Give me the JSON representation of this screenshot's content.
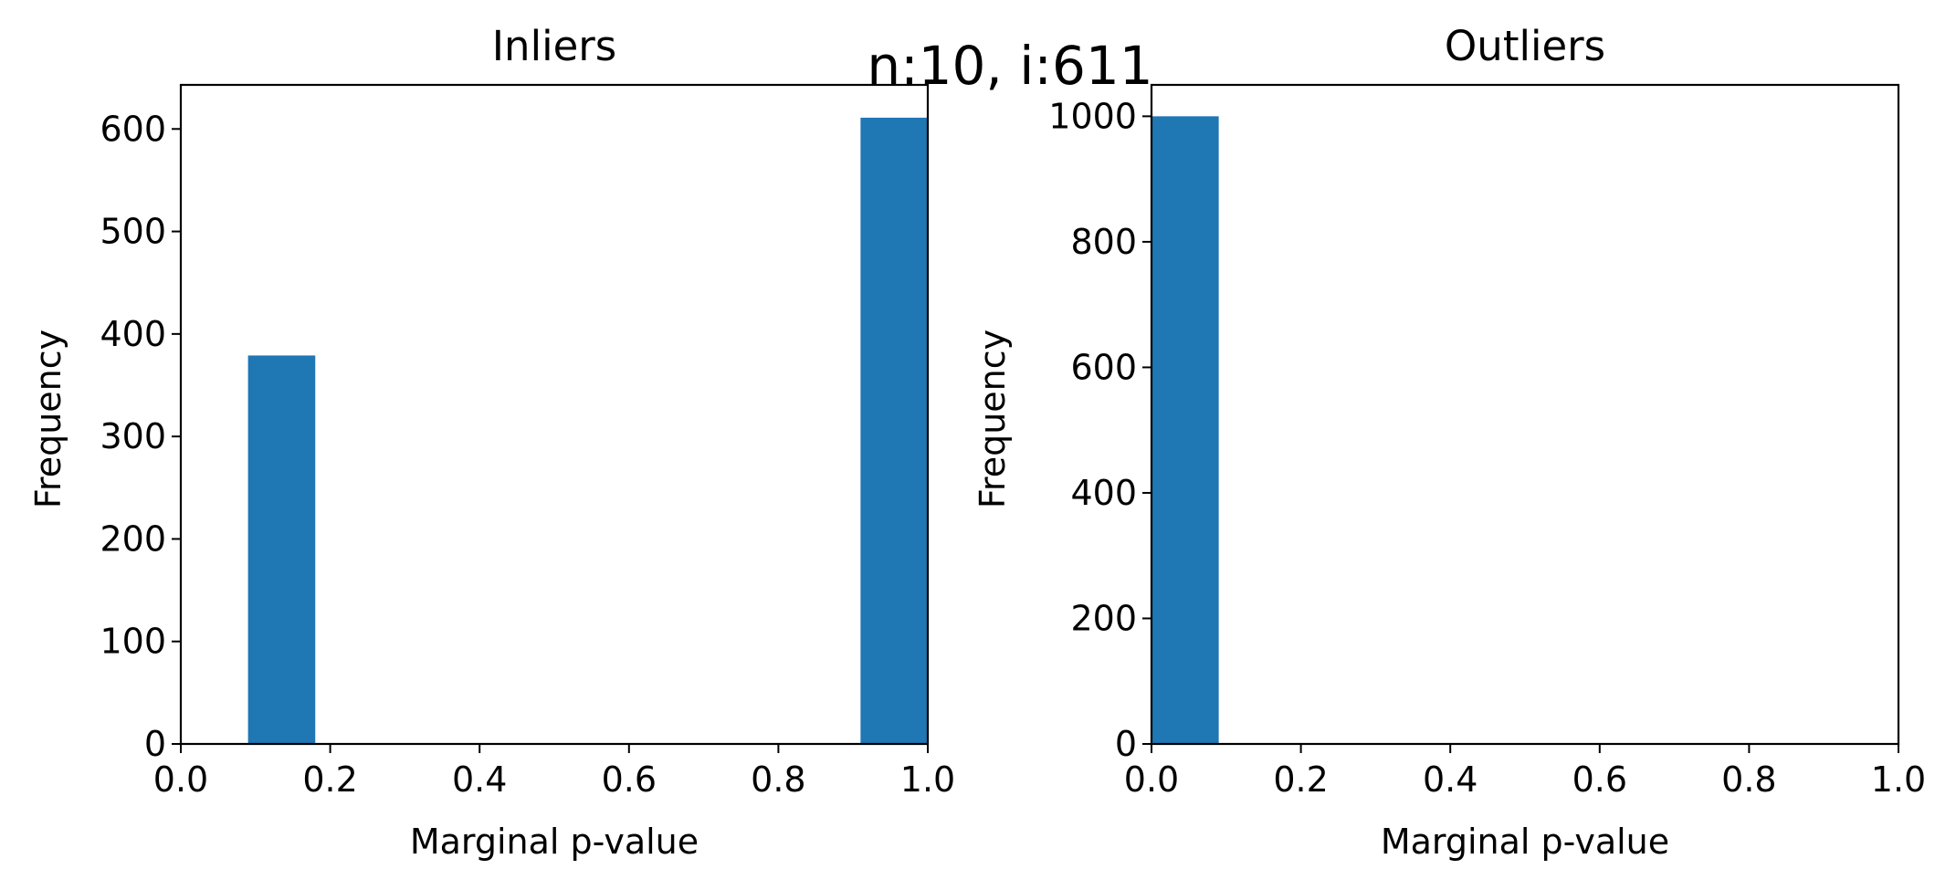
{
  "suptitle": "n:10, i:611",
  "chart_data": [
    {
      "type": "bar",
      "title": "Inliers",
      "xlabel": "Marginal p-value",
      "ylabel": "Frequency",
      "xlim": [
        0.0,
        1.0
      ],
      "ylim": [
        0,
        643
      ],
      "x_ticks": [
        "0.0",
        "0.2",
        "0.4",
        "0.6",
        "0.8",
        "1.0"
      ],
      "y_ticks": [
        "0",
        "100",
        "200",
        "300",
        "400",
        "500",
        "600"
      ],
      "bars": [
        {
          "x0": 0.09,
          "x1": 0.18,
          "value": 379
        },
        {
          "x0": 0.91,
          "x1": 1.0,
          "value": 611
        }
      ],
      "color": "#1f77b4",
      "grid": false
    },
    {
      "type": "bar",
      "title": "Outliers",
      "xlabel": "Marginal p-value",
      "ylabel": "Frequency",
      "xlim": [
        0.0,
        1.0
      ],
      "ylim": [
        0,
        1050
      ],
      "x_ticks": [
        "0.0",
        "0.2",
        "0.4",
        "0.6",
        "0.8",
        "1.0"
      ],
      "y_ticks": [
        "0",
        "200",
        "400",
        "600",
        "800",
        "1000"
      ],
      "bars": [
        {
          "x0": 0.0,
          "x1": 0.09,
          "value": 1000
        }
      ],
      "color": "#1f77b4",
      "grid": false
    }
  ]
}
